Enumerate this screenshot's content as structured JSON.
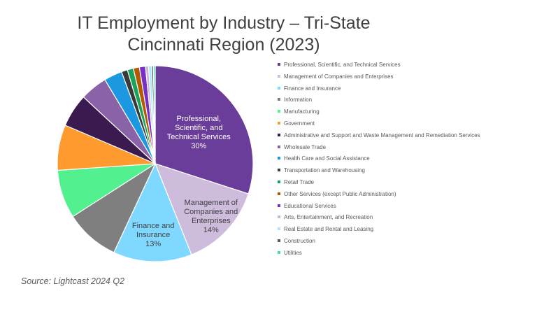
{
  "chart_data": {
    "type": "pie",
    "title_lines": [
      "IT Employment by Industry – Tri-State",
      "Cincinnati Region (2023)"
    ],
    "slices": [
      {
        "name": "Professional, Scientific, and Technical Services",
        "value": 30,
        "color": "#6a3d9a",
        "label_lines": [
          "Professional,",
          "Scientific, and",
          "Technical Services",
          "30%"
        ],
        "label_color": "#ffffff"
      },
      {
        "name": "Management of Companies and Enterprises",
        "value": 14,
        "color": "#cdbcdc",
        "label_lines": [
          "Management of",
          "Companies and",
          "Enterprises",
          "14%"
        ],
        "label_color": "#404040"
      },
      {
        "name": "Finance and Insurance",
        "value": 13,
        "color": "#7fd8ff",
        "label_lines": [
          "Finance and",
          "Insurance",
          "13%"
        ],
        "label_color": "#404040"
      },
      {
        "name": "Information",
        "value": 9,
        "color": "#7f7f7f"
      },
      {
        "name": "Manufacturing",
        "value": 8,
        "color": "#53f08f"
      },
      {
        "name": "Government",
        "value": 7.5,
        "color": "#ff9a2e"
      },
      {
        "name": "Administrative and Support and Waste Management and Remediation Services",
        "value": 5.5,
        "color": "#3b1a4f"
      },
      {
        "name": "Wholesale Trade",
        "value": 4.5,
        "color": "#8a62a8"
      },
      {
        "name": "Health Care and Social Assistance",
        "value": 3,
        "color": "#1b98e0"
      },
      {
        "name": "Transportation and Warehousing",
        "value": 1,
        "color": "#3a3a3a"
      },
      {
        "name": "Retail Trade",
        "value": 1,
        "color": "#17a35a"
      },
      {
        "name": "Other Services (except Public Administration)",
        "value": 1,
        "color": "#b35a00"
      },
      {
        "name": "Educational Services",
        "value": 1,
        "color": "#7a2fc4"
      },
      {
        "name": "Arts, Entertainment, and Recreation",
        "value": 0.5,
        "color": "#c9b6e0"
      },
      {
        "name": "Real Estate and Rental and Leasing",
        "value": 0.5,
        "color": "#a8e6ff"
      },
      {
        "name": "Construction",
        "value": 0.3,
        "color": "#5a5a5a"
      },
      {
        "name": "Utilities",
        "value": 0.3,
        "color": "#3fe0a6"
      }
    ]
  },
  "source": "Source: Lightcast 2024 Q2"
}
